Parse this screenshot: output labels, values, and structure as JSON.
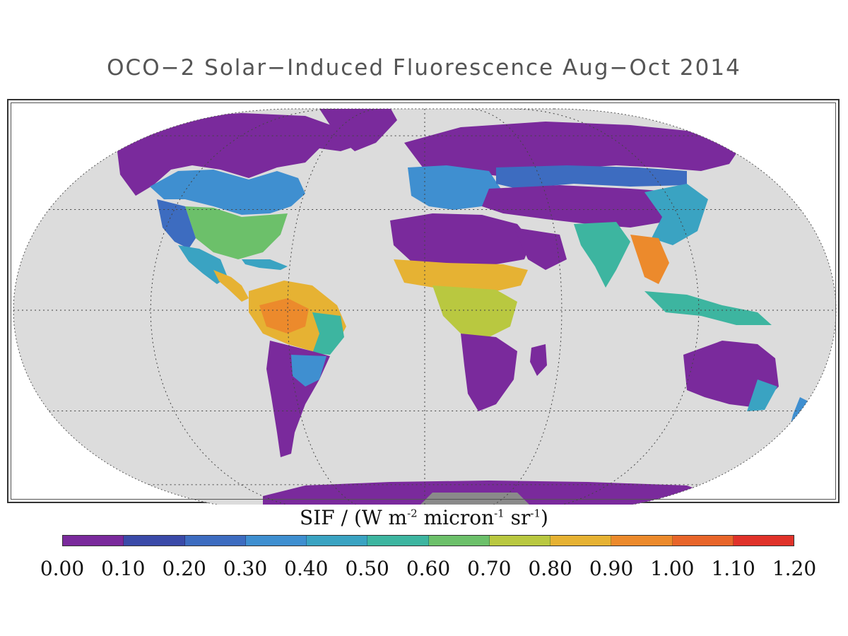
{
  "title": "OCO−2 Solar−Induced Fluorescence Aug−Oct 2014",
  "colorbar": {
    "label_prefix": "SIF / (W m",
    "label_sup1": "-2",
    "label_mid1": " micron",
    "label_sup2": "-1",
    "label_mid2": " sr",
    "label_sup3": "-1",
    "label_suffix": ")",
    "ticks": [
      "0.00",
      "0.10",
      "0.20",
      "0.30",
      "0.40",
      "0.50",
      "0.60",
      "0.70",
      "0.80",
      "0.90",
      "1.00",
      "1.10",
      "1.20"
    ],
    "colors": [
      "#7a2a9c",
      "#3a4aa8",
      "#3d6cc0",
      "#3f8fd0",
      "#3aa3c2",
      "#3db5a0",
      "#6cc06a",
      "#b9c840",
      "#e6b233",
      "#ec8a2c",
      "#e8652a",
      "#e0322a"
    ]
  },
  "map": {
    "ocean_color": "#dcdcdc",
    "no_data_color": "#8a8a8a",
    "projection": "robinson"
  }
}
